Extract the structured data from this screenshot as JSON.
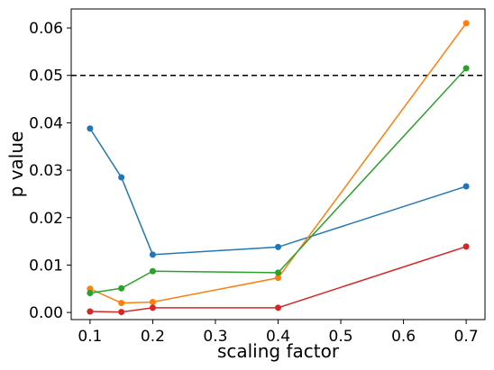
{
  "chart_data": {
    "type": "line",
    "title": "",
    "xlabel": "scaling factor",
    "ylabel": "p value",
    "xlim": [
      0.07,
      0.73
    ],
    "ylim": [
      -0.0015,
      0.064
    ],
    "xticks": [
      0.1,
      0.2,
      0.3,
      0.4,
      0.5,
      0.6,
      0.7
    ],
    "yticks": [
      0.0,
      0.01,
      0.02,
      0.03,
      0.04,
      0.05,
      0.06
    ],
    "xtick_labels": [
      "0.1",
      "0.2",
      "0.3",
      "0.4",
      "0.5",
      "0.6",
      "0.7"
    ],
    "ytick_labels": [
      "0.00",
      "0.01",
      "0.02",
      "0.03",
      "0.04",
      "0.05",
      "0.06"
    ],
    "grid": false,
    "legend": "none",
    "reference_line": {
      "y": 0.05,
      "style": "dashed",
      "color": "#000000"
    },
    "x": [
      0.1,
      0.15,
      0.2,
      0.4,
      0.7
    ],
    "series": [
      {
        "color": "#1f77b4",
        "values": [
          0.0388,
          0.0285,
          0.0122,
          0.0138,
          0.0266
        ]
      },
      {
        "color": "#ff7f0e",
        "values": [
          0.005,
          0.002,
          0.0022,
          0.0073,
          0.061
        ]
      },
      {
        "color": "#2ca02c",
        "values": [
          0.0041,
          0.0051,
          0.0087,
          0.0084,
          0.0515
        ]
      },
      {
        "color": "#d62728",
        "values": [
          0.0002,
          0.0001,
          0.001,
          0.001,
          0.0139
        ]
      }
    ]
  }
}
